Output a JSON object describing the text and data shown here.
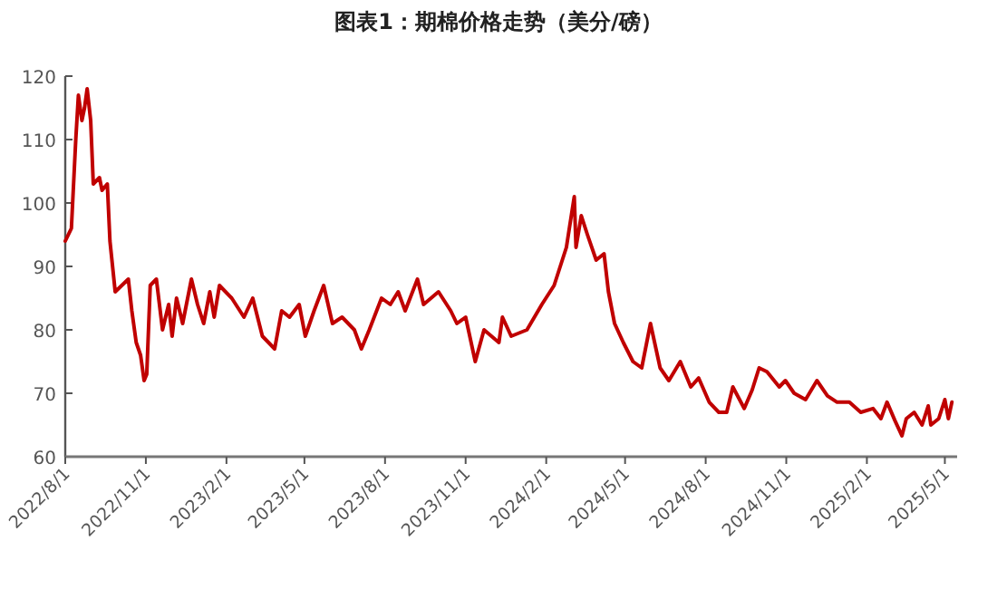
{
  "chart_data": {
    "type": "line",
    "title": "图表1：期棉价格走势（美分/磅）",
    "x": [
      "2022-08-01",
      "2022-08-08",
      "2022-08-13",
      "2022-08-16",
      "2022-08-20",
      "2022-08-23",
      "2022-08-26",
      "2022-08-30",
      "2022-09-02",
      "2022-09-09",
      "2022-09-12",
      "2022-09-18",
      "2022-09-21",
      "2022-09-27",
      "2022-10-12",
      "2022-10-16",
      "2022-10-21",
      "2022-10-26",
      "2022-10-30",
      "2022-11-02",
      "2022-11-06",
      "2022-11-13",
      "2022-11-20",
      "2022-11-27",
      "2022-12-01",
      "2022-12-06",
      "2022-12-13",
      "2022-12-23",
      "2022-12-30",
      "2023-01-06",
      "2023-01-13",
      "2023-01-18",
      "2023-01-24",
      "2023-02-07",
      "2023-02-21",
      "2023-03-03",
      "2023-03-14",
      "2023-03-28",
      "2023-04-05",
      "2023-04-14",
      "2023-04-25",
      "2023-05-02",
      "2023-05-12",
      "2023-05-23",
      "2023-06-02",
      "2023-06-13",
      "2023-06-27",
      "2023-07-05",
      "2023-07-14",
      "2023-07-28",
      "2023-08-07",
      "2023-08-16",
      "2023-08-24",
      "2023-09-07",
      "2023-09-14",
      "2023-10-01",
      "2023-10-15",
      "2023-10-22",
      "2023-11-01",
      "2023-11-12",
      "2023-11-22",
      "2023-12-09",
      "2023-12-13",
      "2023-12-23",
      "2024-01-10",
      "2024-01-27",
      "2024-02-10",
      "2024-02-24",
      "2024-03-04",
      "2024-03-06",
      "2024-03-12",
      "2024-03-19",
      "2024-03-29",
      "2024-04-07",
      "2024-04-12",
      "2024-04-19",
      "2024-04-29",
      "2024-05-10",
      "2024-05-20",
      "2024-05-30",
      "2024-06-10",
      "2024-06-20",
      "2024-07-03",
      "2024-07-15",
      "2024-07-24",
      "2024-08-05",
      "2024-08-16",
      "2024-08-25",
      "2024-09-01",
      "2024-09-14",
      "2024-09-23",
      "2024-10-01",
      "2024-10-10",
      "2024-10-24",
      "2024-10-31",
      "2024-11-10",
      "2024-11-23",
      "2024-12-06",
      "2024-12-18",
      "2024-12-29",
      "2025-01-12",
      "2025-01-25",
      "2025-02-08",
      "2025-02-17",
      "2025-02-24",
      "2025-03-05",
      "2025-03-13",
      "2025-03-18",
      "2025-03-27",
      "2025-04-05",
      "2025-04-12",
      "2025-04-15",
      "2025-04-24",
      "2025-05-01",
      "2025-05-05",
      "2025-05-09"
    ],
    "series": [
      {
        "color": "#c00000",
        "values": [
          94,
          96,
          110,
          117,
          113,
          115,
          118,
          113,
          103,
          104,
          102,
          103,
          94,
          86,
          88,
          83,
          78,
          76,
          72,
          73,
          87,
          88,
          80,
          84,
          79,
          85,
          81,
          88,
          84,
          81,
          86,
          82,
          87,
          85,
          82,
          85,
          79,
          77,
          83,
          82,
          84,
          79,
          83,
          87,
          81,
          82,
          80,
          77,
          80,
          85,
          84,
          86,
          83,
          88,
          84,
          86,
          83,
          81,
          82,
          75,
          80,
          78,
          82,
          79,
          80,
          84,
          87,
          93,
          101,
          93,
          98,
          95,
          91,
          92,
          86,
          81,
          78,
          75,
          74,
          81,
          74,
          72,
          75,
          71,
          72.4,
          68.6,
          67,
          67,
          71,
          67.6,
          70.5,
          74,
          73.4,
          71,
          72,
          70,
          69,
          72,
          69.6,
          68.6,
          68.6,
          67,
          67.6,
          66,
          68.6,
          65.7,
          63.3,
          66,
          67,
          65,
          68,
          65,
          66,
          69,
          66,
          68.6
        ]
      }
    ],
    "xlim": [
      "2022-08-01",
      "2025-05-15"
    ],
    "xticks": [
      {
        "value": "2022-08-01",
        "label": "2022/8/1"
      },
      {
        "value": "2022-11-01",
        "label": "2022/11/1"
      },
      {
        "value": "2023-02-01",
        "label": "2023/2/1"
      },
      {
        "value": "2023-05-01",
        "label": "2023/5/1"
      },
      {
        "value": "2023-08-01",
        "label": "2023/8/1"
      },
      {
        "value": "2023-11-01",
        "label": "2023/11/1"
      },
      {
        "value": "2024-02-01",
        "label": "2024/2/1"
      },
      {
        "value": "2024-05-01",
        "label": "2024/5/1"
      },
      {
        "value": "2024-08-01",
        "label": "2024/8/1"
      },
      {
        "value": "2024-11-01",
        "label": "2024/11/1"
      },
      {
        "value": "2025-02-01",
        "label": "2025/2/1"
      },
      {
        "value": "2025-05-01",
        "label": "2025/5/1"
      }
    ],
    "ylim": [
      60,
      120
    ],
    "yticks": [
      60,
      70,
      80,
      90,
      100,
      110,
      120
    ],
    "grid": false,
    "marker": "none",
    "line_style": "solid"
  }
}
